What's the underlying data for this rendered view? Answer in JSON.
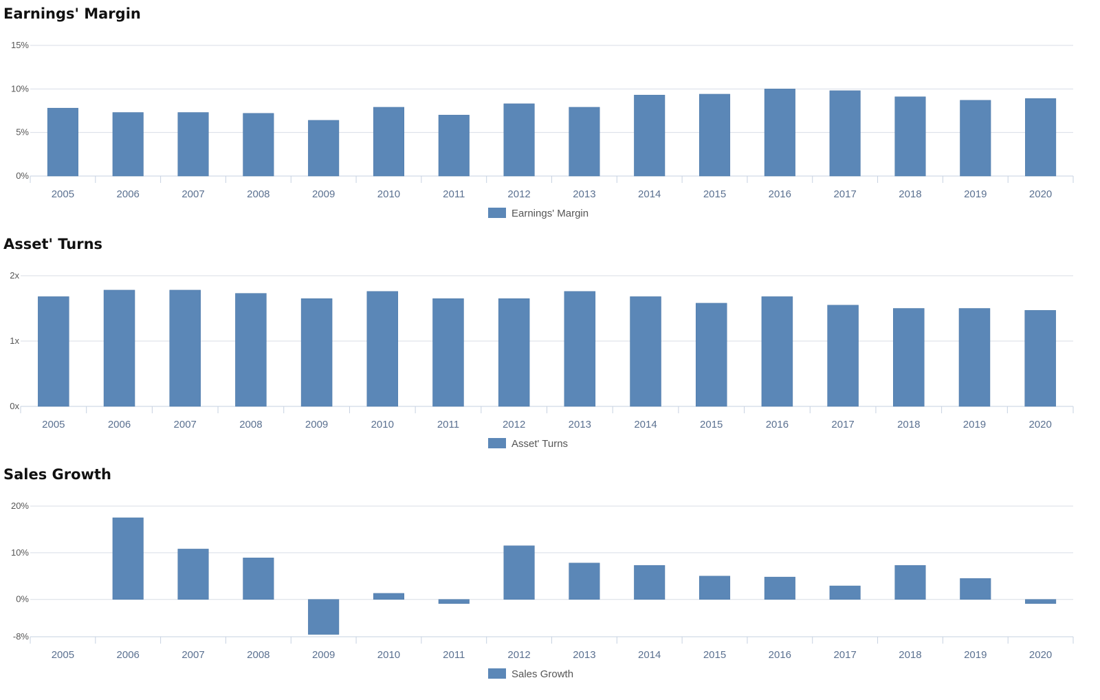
{
  "chart_data": [
    {
      "type": "bar",
      "title": "Earnings' Margin",
      "categories": [
        "2005",
        "2006",
        "2007",
        "2008",
        "2009",
        "2010",
        "2011",
        "2012",
        "2013",
        "2014",
        "2015",
        "2016",
        "2017",
        "2018",
        "2019",
        "2020"
      ],
      "series": [
        {
          "name": "Earnings' Margin",
          "values": [
            7.8,
            7.3,
            7.3,
            7.2,
            6.4,
            7.9,
            7.0,
            8.3,
            7.9,
            9.3,
            9.4,
            10.0,
            9.8,
            9.1,
            8.7,
            8.9
          ]
        }
      ],
      "ylim": [
        0,
        15
      ],
      "yticks": [
        0,
        5,
        10,
        15
      ],
      "ytick_labels": [
        "0%",
        "5%",
        "10%",
        "15%"
      ],
      "grid": true,
      "legend": "bottom-center",
      "bar_color": "#5b87b7"
    },
    {
      "type": "bar",
      "title": "Asset' Turns",
      "categories": [
        "2005",
        "2006",
        "2007",
        "2008",
        "2009",
        "2010",
        "2011",
        "2012",
        "2013",
        "2014",
        "2015",
        "2016",
        "2017",
        "2018",
        "2019",
        "2020"
      ],
      "series": [
        {
          "name": "Asset' Turns",
          "values": [
            1.68,
            1.78,
            1.78,
            1.73,
            1.65,
            1.76,
            1.65,
            1.65,
            1.76,
            1.68,
            1.58,
            1.68,
            1.55,
            1.5,
            1.5,
            1.47
          ]
        }
      ],
      "ylim": [
        0,
        2
      ],
      "yticks": [
        0,
        1,
        2
      ],
      "ytick_labels": [
        "0x",
        "1x",
        "2x"
      ],
      "grid": true,
      "legend": "bottom-center",
      "bar_color": "#5b87b7"
    },
    {
      "type": "bar",
      "title": "Sales Growth",
      "categories": [
        "2005",
        "2006",
        "2007",
        "2008",
        "2009",
        "2010",
        "2011",
        "2012",
        "2013",
        "2014",
        "2015",
        "2016",
        "2017",
        "2018",
        "2019",
        "2020"
      ],
      "series": [
        {
          "name": "Sales Growth",
          "values": [
            0,
            17.5,
            10.8,
            8.9,
            -7.5,
            1.3,
            -0.9,
            11.5,
            7.8,
            7.3,
            5.0,
            4.8,
            2.9,
            7.3,
            4.5,
            -0.9
          ]
        }
      ],
      "ylim": [
        -8,
        20
      ],
      "yticks": [
        -8,
        0,
        10,
        20
      ],
      "ytick_labels": [
        "-8%",
        "0%",
        "10%",
        "20%"
      ],
      "grid": true,
      "legend": "bottom-center",
      "bar_color": "#5b87b7"
    }
  ]
}
